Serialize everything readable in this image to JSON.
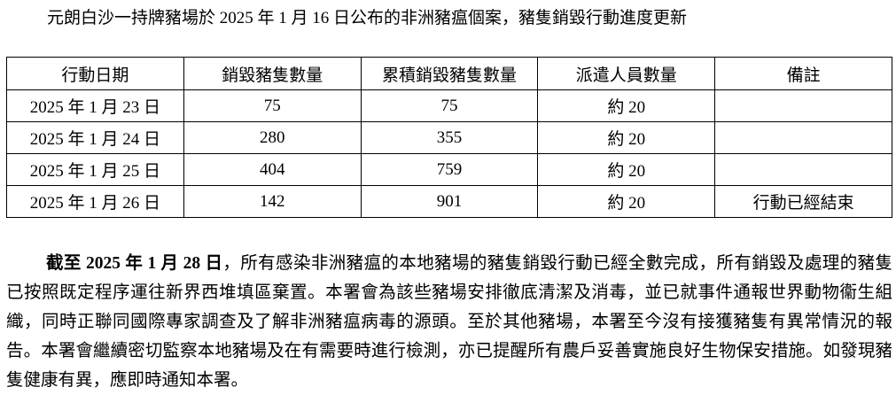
{
  "title": "元朗白沙一持牌豬場於 2025 年 1 月 16 日公布的非洲豬瘟個案，豬隻銷毀行動進度更新",
  "table": {
    "headers": [
      "行動日期",
      "銷毀豬隻數量",
      "累積銷毀豬隻數量",
      "派遣人員數量",
      "備註"
    ],
    "rows": [
      [
        "2025 年 1 月 23 日",
        "75",
        "75",
        "約 20",
        ""
      ],
      [
        "2025 年 1 月 24 日",
        "280",
        "355",
        "約 20",
        ""
      ],
      [
        "2025 年 1 月 25 日",
        "404",
        "759",
        "約 20",
        ""
      ],
      [
        "2025 年 1 月 26 日",
        "142",
        "901",
        "約 20",
        "行動已經結束"
      ]
    ]
  },
  "paragraph": {
    "bold_lead": "截至 2025 年 1 月 28 日",
    "text": "，所有感染非洲豬瘟的本地豬場的豬隻銷毀行動已經全數完成，所有銷毀及處理的豬隻已按照既定程序運往新界西堆填區棄置。本署會為該些豬場安排徹底清潔及消毒，並已就事件通報世界動物衞生組織，同時正聯同國際專家調查及了解非洲豬瘟病毒的源頭。至於其他豬場，本署至今沒有接獲豬隻有異常情況的報告。本署會繼續密切監察本地豬場及在有需要時進行檢測，亦已提醒所有農戶妥善實施良好生物保安措施。如發現豬隻健康有異，應即時通知本署。"
  }
}
